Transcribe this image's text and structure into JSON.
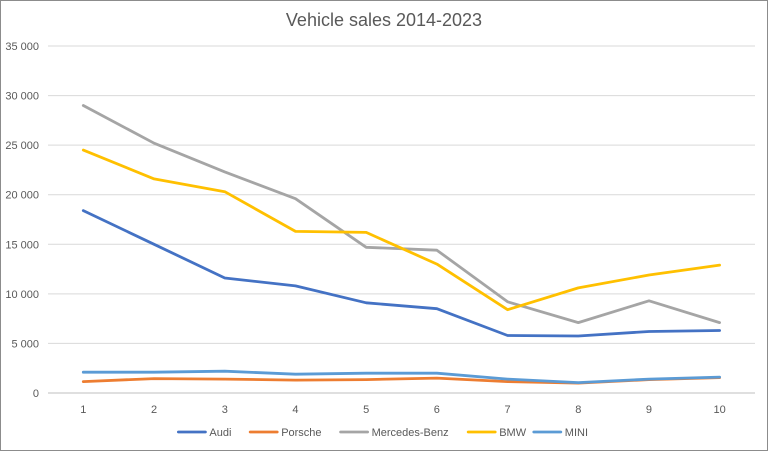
{
  "chart_data": {
    "type": "line",
    "title": "Vehicle sales 2014-2023",
    "xlabel": "",
    "ylabel": "",
    "x": [
      1,
      2,
      3,
      4,
      5,
      6,
      7,
      8,
      9,
      10
    ],
    "ylim": [
      0,
      35000
    ],
    "y_ticks": [
      0,
      5000,
      10000,
      15000,
      20000,
      25000,
      30000,
      35000
    ],
    "y_tick_labels": [
      "0",
      "5 000",
      "10 000",
      "15 000",
      "20 000",
      "25 000",
      "30 000",
      "35 000"
    ],
    "grid": true,
    "legend_position": "bottom",
    "series": [
      {
        "name": "Audi",
        "color": "#4472C4",
        "values": [
          18400,
          15000,
          11600,
          10800,
          9100,
          8500,
          5800,
          5750,
          6200,
          6300
        ]
      },
      {
        "name": "Porsche",
        "color": "#ED7D31",
        "values": [
          1150,
          1450,
          1400,
          1300,
          1350,
          1500,
          1150,
          1000,
          1350,
          1550
        ]
      },
      {
        "name": "Mercedes-Benz",
        "color": "#A5A5A5",
        "values": [
          29000,
          25200,
          22300,
          19600,
          14700,
          14400,
          9200,
          7100,
          9300,
          7100
        ]
      },
      {
        "name": "BMW",
        "color": "#FFC000",
        "values": [
          24500,
          21600,
          20300,
          16300,
          16200,
          13000,
          8400,
          10600,
          11900,
          12900
        ]
      },
      {
        "name": "MINI",
        "color": "#5B9BD5",
        "values": [
          2100,
          2100,
          2200,
          1900,
          2000,
          2000,
          1400,
          1050,
          1400,
          1600
        ]
      }
    ]
  }
}
